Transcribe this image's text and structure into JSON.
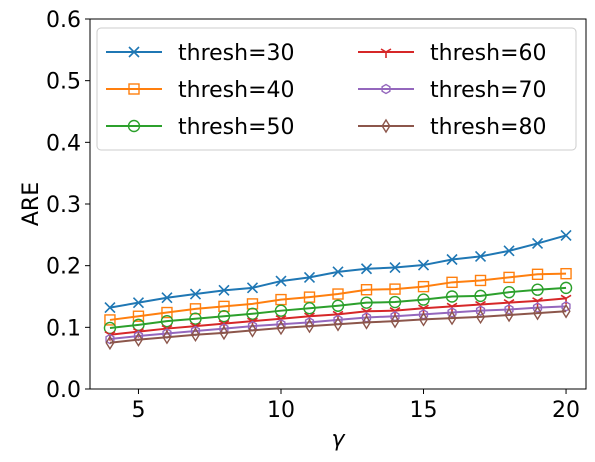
{
  "chart_data": {
    "type": "line",
    "title": "",
    "xlabel": "γ",
    "ylabel": "ARE",
    "xlim": [
      3.3,
      20.7
    ],
    "ylim": [
      0.0,
      0.6
    ],
    "xticks": [
      5,
      10,
      15,
      20
    ],
    "xtick_labels": [
      "5",
      "10",
      "15",
      "20"
    ],
    "yticks": [
      0.0,
      0.1,
      0.2,
      0.3,
      0.4,
      0.5,
      0.6
    ],
    "ytick_labels": [
      "0.0",
      "0.1",
      "0.2",
      "0.3",
      "0.4",
      "0.5",
      "0.6"
    ],
    "grid": false,
    "legend": {
      "placement": "top-left",
      "columns": 2
    },
    "x": [
      4,
      5,
      6,
      7,
      8,
      9,
      10,
      11,
      12,
      13,
      14,
      15,
      16,
      17,
      18,
      19,
      20
    ],
    "series": [
      {
        "name": "thresh=30",
        "color": "#1f77b4",
        "marker": "x",
        "values": [
          0.132,
          0.14,
          0.148,
          0.154,
          0.16,
          0.164,
          0.175,
          0.181,
          0.19,
          0.195,
          0.197,
          0.201,
          0.21,
          0.215,
          0.224,
          0.236,
          0.249
        ]
      },
      {
        "name": "thresh=40",
        "color": "#ff7f0e",
        "marker": "square",
        "values": [
          0.112,
          0.118,
          0.124,
          0.13,
          0.134,
          0.138,
          0.145,
          0.149,
          0.154,
          0.161,
          0.162,
          0.166,
          0.173,
          0.176,
          0.181,
          0.186,
          0.187
        ]
      },
      {
        "name": "thresh=50",
        "color": "#2ca02c",
        "marker": "circle",
        "values": [
          0.099,
          0.104,
          0.11,
          0.114,
          0.118,
          0.122,
          0.127,
          0.131,
          0.135,
          0.14,
          0.141,
          0.145,
          0.15,
          0.151,
          0.157,
          0.161,
          0.164
        ]
      },
      {
        "name": "thresh=60",
        "color": "#d62728",
        "marker": "tri_down",
        "values": [
          0.088,
          0.093,
          0.098,
          0.102,
          0.106,
          0.11,
          0.114,
          0.118,
          0.121,
          0.126,
          0.127,
          0.131,
          0.134,
          0.137,
          0.14,
          0.143,
          0.147
        ]
      },
      {
        "name": "thresh=70",
        "color": "#9467bd",
        "marker": "hexagon",
        "values": [
          0.081,
          0.086,
          0.09,
          0.094,
          0.098,
          0.102,
          0.105,
          0.108,
          0.112,
          0.116,
          0.118,
          0.121,
          0.124,
          0.127,
          0.129,
          0.132,
          0.134
        ]
      },
      {
        "name": "thresh=80",
        "color": "#8c564b",
        "marker": "diamond",
        "values": [
          0.075,
          0.08,
          0.084,
          0.088,
          0.091,
          0.095,
          0.099,
          0.102,
          0.105,
          0.108,
          0.11,
          0.113,
          0.115,
          0.117,
          0.12,
          0.123,
          0.126
        ]
      }
    ]
  }
}
